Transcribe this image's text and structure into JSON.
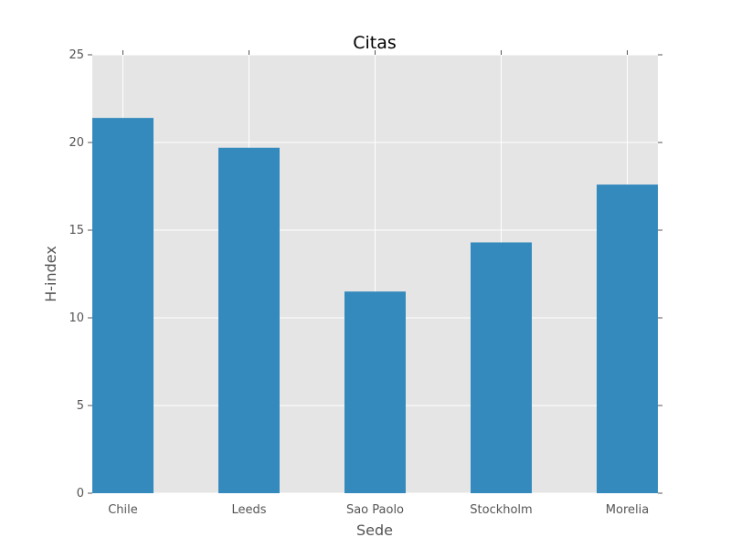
{
  "chart_data": {
    "type": "bar",
    "title": "Citas",
    "xlabel": "Sede",
    "ylabel": "H-index",
    "categories": [
      "Chile",
      "Leeds",
      "Sao Paolo",
      "Stockholm",
      "Morelia"
    ],
    "values": [
      21.4,
      19.7,
      11.5,
      14.3,
      17.6
    ],
    "ylim": [
      0,
      25
    ],
    "yticks": [
      "0",
      "5",
      "10",
      "15",
      "20",
      "25"
    ],
    "grid": true,
    "colors": {
      "bar": "#348abd",
      "plot_background": "#e5e5e5",
      "grid": "#ffffff"
    }
  }
}
